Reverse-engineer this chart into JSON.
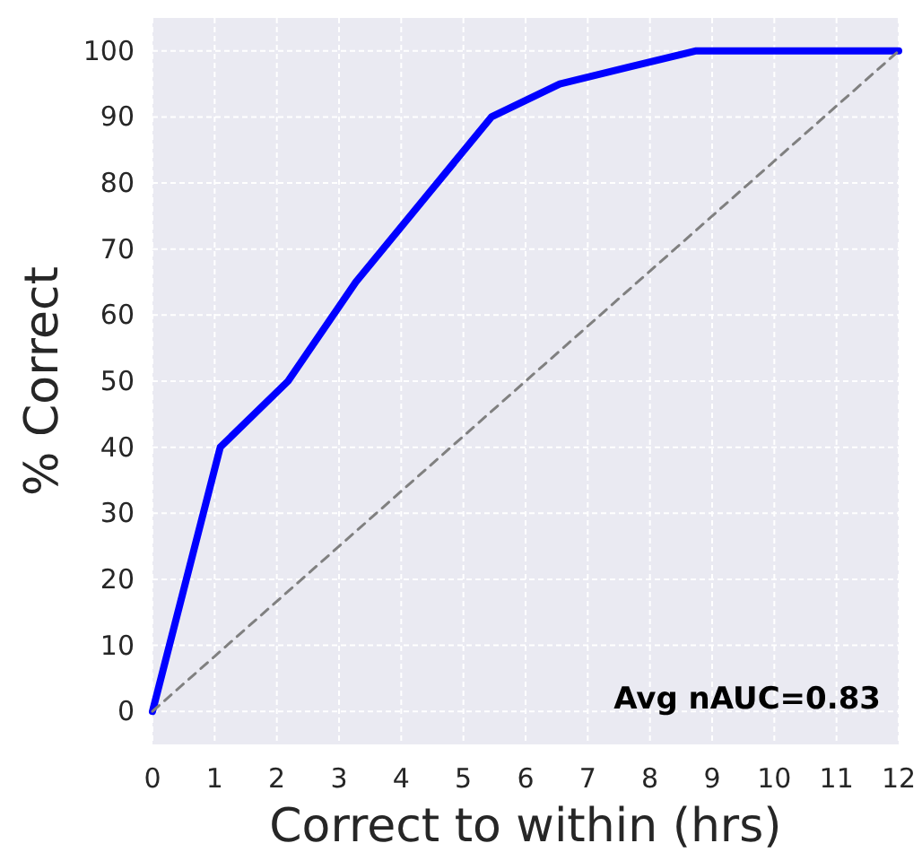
{
  "chart_data": {
    "type": "line",
    "xlabel": "Correct to within (hrs)",
    "ylabel": "% Correct",
    "xlim": [
      0,
      12
    ],
    "ylim": [
      -5,
      105
    ],
    "xticks": [
      0,
      1,
      2,
      3,
      4,
      5,
      6,
      7,
      8,
      9,
      10,
      11,
      12
    ],
    "yticks": [
      0,
      10,
      20,
      30,
      40,
      50,
      60,
      70,
      80,
      90,
      100
    ],
    "grid": true,
    "series": [
      {
        "color": "#0000ff",
        "x": [
          0,
          1.09,
          2.18,
          3.27,
          4.36,
          5.45,
          6.55,
          7.64,
          8.73,
          9.82,
          10.91,
          12
        ],
        "values": [
          0,
          40,
          50,
          65,
          77.5,
          90,
          95,
          97.5,
          100,
          100,
          100,
          100
        ],
        "line_style": "solid"
      },
      {
        "color": "#808080",
        "x": [
          0,
          12
        ],
        "values": [
          0,
          100
        ],
        "line_style": "dashed"
      }
    ],
    "annotations": [
      "Avg nAUC=0.83"
    ]
  }
}
